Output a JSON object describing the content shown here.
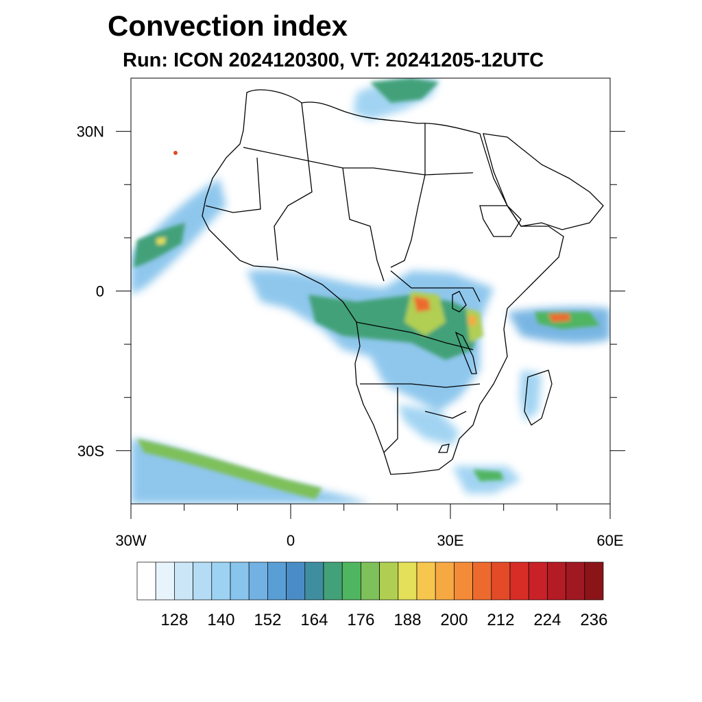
{
  "title": "Convection index",
  "subtitle": "Run: ICON 2024120300,  VT: 20241205-12UTC",
  "map": {
    "region": "Africa and surroundings",
    "lon_range": [
      -30,
      60
    ],
    "lat_range": [
      -40,
      40
    ],
    "lon_tick_labels": [
      {
        "lon": -30,
        "label": "30W"
      },
      {
        "lon": 0,
        "label": "0"
      },
      {
        "lon": 30,
        "label": "30E"
      },
      {
        "lon": 60,
        "label": "60E"
      }
    ],
    "lat_tick_labels": [
      {
        "lat": 30,
        "label": "30N"
      },
      {
        "lat": 0,
        "label": "0"
      },
      {
        "lat": -30,
        "label": "30S"
      }
    ],
    "minor_lon_ticks": [
      -20,
      -10,
      10,
      20,
      40,
      50
    ],
    "minor_lat_ticks": [
      20,
      10,
      -10,
      -20
    ]
  },
  "colorbar": {
    "colors": [
      "#ffffff",
      "#e8f4fc",
      "#cbe6f6",
      "#b4dcf4",
      "#9dd2f2",
      "#88c4ec",
      "#72b2e2",
      "#5a9ed6",
      "#4a8cc6",
      "#3f8ea0",
      "#43a179",
      "#4fb560",
      "#7ec05a",
      "#b0cf52",
      "#e4e05a",
      "#f6c64e",
      "#f6a943",
      "#f48b38",
      "#ed6a2e",
      "#e24a28",
      "#d82d27",
      "#c82128",
      "#b31b25",
      "#a01821",
      "#8a1418"
    ],
    "labels": [
      "128",
      "140",
      "152",
      "164",
      "176",
      "188",
      "200",
      "212",
      "224",
      "236"
    ]
  }
}
